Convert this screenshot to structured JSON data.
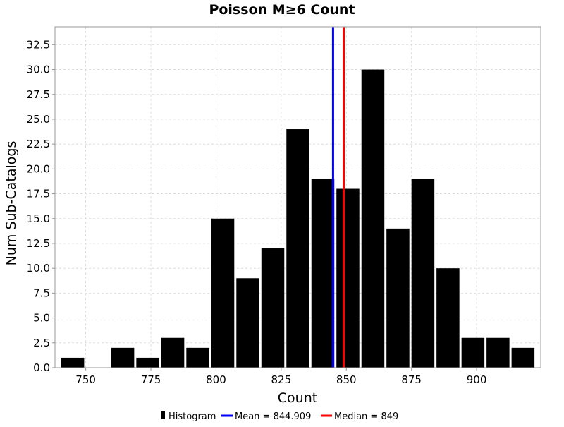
{
  "chart_data": {
    "type": "bar",
    "title": "Poisson M≥6 Count",
    "xlabel": "Count",
    "ylabel": "Num Sub-Catalogs",
    "bin_width": 9.6,
    "bin_centers": [
      745.0,
      754.6,
      764.2,
      773.8,
      783.4,
      793.0,
      802.6,
      812.2,
      821.8,
      831.4,
      841.0,
      850.6,
      860.2,
      869.8,
      879.4,
      889.0,
      898.6,
      908.2,
      917.8
    ],
    "values": [
      1,
      0,
      2,
      1,
      3,
      2,
      15,
      9,
      12,
      24,
      19,
      18,
      30,
      14,
      19,
      10,
      3,
      3,
      2
    ],
    "xlim": [
      738.2,
      924.6
    ],
    "ylim": [
      0,
      34.3
    ],
    "x_ticks": [
      750,
      775,
      800,
      825,
      850,
      875,
      900
    ],
    "x_tick_labels": [
      "750",
      "775",
      "800",
      "825",
      "850",
      "875",
      "900"
    ],
    "y_ticks": [
      0,
      2.5,
      5,
      7.5,
      10,
      12.5,
      15,
      17.5,
      20,
      22.5,
      25,
      27.5,
      30,
      32.5
    ],
    "y_tick_labels": [
      "0.0",
      "2.5",
      "5.0",
      "7.5",
      "10.0",
      "12.5",
      "15.0",
      "17.5",
      "20.0",
      "22.5",
      "25.0",
      "27.5",
      "30.0",
      "32.5"
    ],
    "grid": true,
    "lines": [
      {
        "name": "Mean",
        "value": 844.909,
        "color": "#0000ff"
      },
      {
        "name": "Median",
        "value": 849,
        "color": "#ff0000"
      }
    ],
    "bar_color": "#000000",
    "legend": {
      "placement": "bottom",
      "entries": [
        "Histogram",
        "Mean = 844.909",
        "Median = 849"
      ]
    }
  }
}
